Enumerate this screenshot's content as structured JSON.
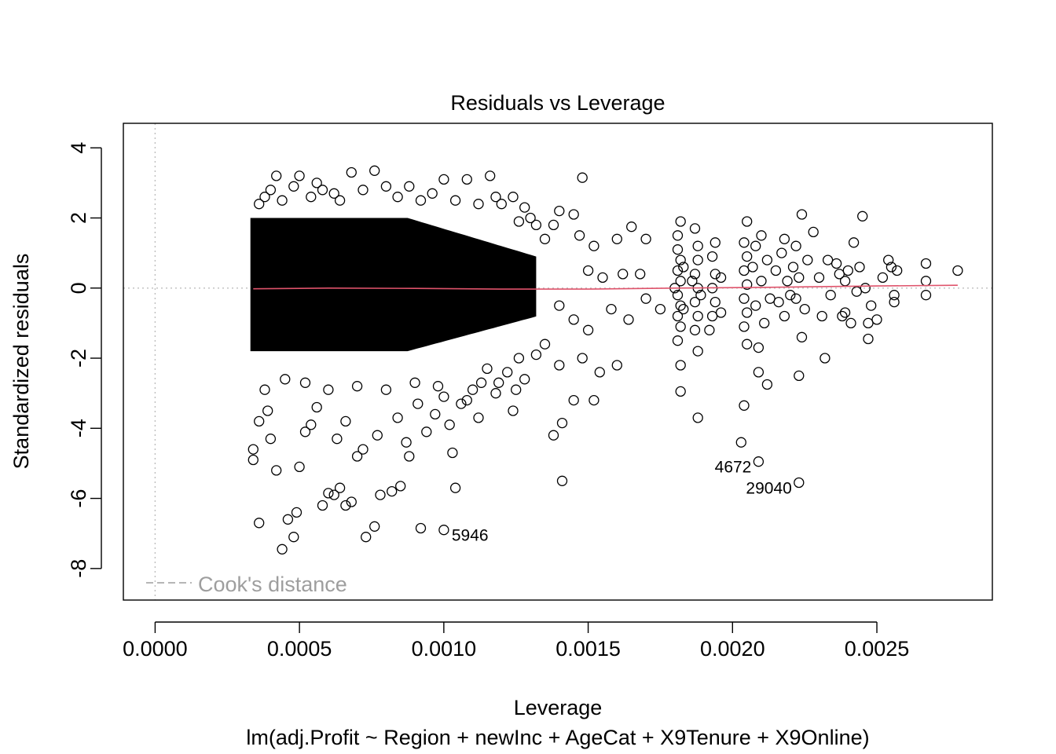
{
  "chart_data": {
    "type": "scatter",
    "title": "Residuals vs Leverage",
    "xlabel": "Leverage",
    "ylabel": "Standardized residuals",
    "subtitle": "lm(adj.Profit ~ Region + newInc + AgeCat + X9Tenure + X9Online)",
    "xlim": [
      -0.00011,
      0.0029
    ],
    "ylim": [
      -8.9,
      4.7
    ],
    "x_ticks": [
      0.0,
      0.0005,
      0.001,
      0.0015,
      0.002,
      0.0025
    ],
    "x_tick_labels": [
      "0.0000",
      "0.0005",
      "0.0010",
      "0.0015",
      "0.0020",
      "0.0025"
    ],
    "y_ticks": [
      -8,
      -6,
      -4,
      -2,
      0,
      2,
      4
    ],
    "y_tick_labels": [
      "-8",
      "-6",
      "-4",
      "-2",
      "0",
      "2",
      "4"
    ],
    "grid": false,
    "reference_lines": {
      "horizontal_zero": true,
      "vertical_zero": true,
      "style": "dotted",
      "color": "#bebebe"
    },
    "legend": {
      "label": "Cook's distance",
      "position": "bottom-left",
      "line_style": "dashed",
      "color": "#9e9e9e"
    },
    "dense_region": {
      "x_min": 0.00033,
      "x_max": 0.00132,
      "y_min": -1.8,
      "y_max": 2.0,
      "description": "overplotted points"
    },
    "points": [
      [
        0.0004,
        2.8
      ],
      [
        0.00042,
        3.2
      ],
      [
        0.0005,
        3.2
      ],
      [
        0.00056,
        3.0
      ],
      [
        0.00062,
        2.7
      ],
      [
        0.00068,
        3.3
      ],
      [
        0.00076,
        3.35
      ],
      [
        0.0008,
        2.9
      ],
      [
        0.00088,
        2.9
      ],
      [
        0.001,
        3.1
      ],
      [
        0.00108,
        3.1
      ],
      [
        0.00116,
        3.2
      ],
      [
        0.0012,
        2.4
      ],
      [
        0.00128,
        2.3
      ],
      [
        0.0013,
        2.0
      ],
      [
        0.0014,
        2.2
      ],
      [
        0.00148,
        3.15
      ],
      [
        0.00147,
        1.5
      ],
      [
        0.00152,
        1.2
      ],
      [
        0.0016,
        1.4
      ],
      [
        0.00165,
        1.75
      ],
      [
        0.0017,
        1.4
      ],
      [
        0.0015,
        0.5
      ],
      [
        0.00155,
        0.3
      ],
      [
        0.00162,
        0.4
      ],
      [
        0.00168,
        0.4
      ],
      [
        0.00145,
        2.1
      ],
      [
        0.00138,
        1.8
      ],
      [
        0.0014,
        -0.5
      ],
      [
        0.00145,
        -0.9
      ],
      [
        0.0015,
        -1.2
      ],
      [
        0.00158,
        -0.6
      ],
      [
        0.00164,
        -0.9
      ],
      [
        0.0017,
        -0.3
      ],
      [
        0.00175,
        -0.6
      ],
      [
        0.00135,
        -1.6
      ],
      [
        0.0014,
        -2.2
      ],
      [
        0.00148,
        -2.0
      ],
      [
        0.00154,
        -2.4
      ],
      [
        0.0016,
        -2.2
      ],
      [
        0.00145,
        -3.2
      ],
      [
        0.00152,
        -3.2
      ],
      [
        0.00138,
        -4.2
      ],
      [
        0.00141,
        -3.85
      ],
      [
        0.00141,
        -5.5
      ],
      [
        0.00034,
        -4.6
      ],
      [
        0.00034,
        -4.9
      ],
      [
        0.00036,
        -6.7
      ],
      [
        0.0004,
        -4.3
      ],
      [
        0.00042,
        -5.2
      ],
      [
        0.00044,
        -7.45
      ],
      [
        0.00046,
        -6.6
      ],
      [
        0.00048,
        -7.1
      ],
      [
        0.00049,
        -6.4
      ],
      [
        0.0005,
        -5.1
      ],
      [
        0.00054,
        -3.9
      ],
      [
        0.00058,
        -6.2
      ],
      [
        0.0006,
        -5.85
      ],
      [
        0.00062,
        -5.9
      ],
      [
        0.00064,
        -5.7
      ],
      [
        0.00066,
        -6.2
      ],
      [
        0.00068,
        -6.1
      ],
      [
        0.0007,
        -4.8
      ],
      [
        0.00073,
        -7.1
      ],
      [
        0.00076,
        -6.8
      ],
      [
        0.00078,
        -5.9
      ],
      [
        0.00082,
        -5.8
      ],
      [
        0.00085,
        -5.65
      ],
      [
        0.00088,
        -4.8
      ],
      [
        0.00092,
        -6.85
      ],
      [
        0.00094,
        -4.1
      ],
      [
        0.001,
        -3.1
      ],
      [
        0.00103,
        -4.7
      ],
      [
        0.00104,
        -5.7
      ],
      [
        0.00108,
        -3.2
      ],
      [
        0.00112,
        -3.7
      ],
      [
        0.00118,
        -3.0
      ],
      [
        0.00124,
        -3.5
      ],
      [
        0.00128,
        -2.6
      ],
      [
        0.00132,
        -1.9
      ],
      [
        0.0011,
        -2.9
      ],
      [
        0.00115,
        -2.3
      ],
      [
        0.00122,
        -2.4
      ],
      [
        0.00126,
        -2.0
      ],
      [
        0.00098,
        -2.8
      ],
      [
        0.0009,
        -2.7
      ],
      [
        0.0008,
        -2.9
      ],
      [
        0.0007,
        -2.8
      ],
      [
        0.0006,
        -2.9
      ],
      [
        0.00052,
        -2.7
      ],
      [
        0.00045,
        -2.6
      ],
      [
        0.00038,
        -2.9
      ],
      [
        0.00036,
        -3.8
      ],
      [
        0.00039,
        -3.5
      ],
      [
        0.00052,
        -4.1
      ],
      [
        0.00056,
        -3.4
      ],
      [
        0.00063,
        -4.3
      ],
      [
        0.00066,
        -3.8
      ],
      [
        0.00072,
        -4.6
      ],
      [
        0.00077,
        -4.2
      ],
      [
        0.00084,
        -3.7
      ],
      [
        0.00087,
        -4.4
      ],
      [
        0.00091,
        -3.3
      ],
      [
        0.00097,
        -3.6
      ],
      [
        0.00102,
        -3.9
      ],
      [
        0.00106,
        -3.3
      ],
      [
        0.00113,
        -2.7
      ],
      [
        0.00119,
        -2.7
      ],
      [
        0.00125,
        -2.9
      ],
      [
        0.00036,
        2.4
      ],
      [
        0.00038,
        2.6
      ],
      [
        0.00044,
        2.5
      ],
      [
        0.00048,
        2.9
      ],
      [
        0.00054,
        2.6
      ],
      [
        0.00058,
        2.8
      ],
      [
        0.00064,
        2.5
      ],
      [
        0.00072,
        2.8
      ],
      [
        0.00084,
        2.6
      ],
      [
        0.00092,
        2.5
      ],
      [
        0.00096,
        2.7
      ],
      [
        0.00104,
        2.5
      ],
      [
        0.00112,
        2.4
      ],
      [
        0.00118,
        2.6
      ],
      [
        0.00124,
        2.6
      ],
      [
        0.00126,
        1.9
      ],
      [
        0.00132,
        1.8
      ],
      [
        0.00135,
        1.4
      ],
      [
        0.00182,
        1.9
      ],
      [
        0.00181,
        1.5
      ],
      [
        0.00181,
        1.1
      ],
      [
        0.00182,
        0.8
      ],
      [
        0.00181,
        0.5
      ],
      [
        0.00182,
        0.2
      ],
      [
        0.00181,
        -0.2
      ],
      [
        0.00182,
        -0.5
      ],
      [
        0.00181,
        -0.8
      ],
      [
        0.00182,
        -1.1
      ],
      [
        0.00181,
        -1.5
      ],
      [
        0.00182,
        -2.2
      ],
      [
        0.00182,
        -2.95
      ],
      [
        0.0018,
        0.0
      ],
      [
        0.00183,
        0.6
      ],
      [
        0.00183,
        -0.6
      ],
      [
        0.00187,
        1.7
      ],
      [
        0.00188,
        1.2
      ],
      [
        0.00188,
        0.8
      ],
      [
        0.00187,
        0.4
      ],
      [
        0.00188,
        0.0
      ],
      [
        0.00187,
        -0.4
      ],
      [
        0.00188,
        -0.8
      ],
      [
        0.00187,
        -1.2
      ],
      [
        0.00188,
        -1.8
      ],
      [
        0.00188,
        -3.7
      ],
      [
        0.00186,
        0.2
      ],
      [
        0.00189,
        -0.2
      ],
      [
        0.00194,
        1.3
      ],
      [
        0.00193,
        0.9
      ],
      [
        0.00194,
        0.4
      ],
      [
        0.00193,
        0.0
      ],
      [
        0.00194,
        -0.4
      ],
      [
        0.00193,
        -0.8
      ],
      [
        0.00192,
        -1.2
      ],
      [
        0.00196,
        -0.7
      ],
      [
        0.00196,
        0.3
      ],
      [
        0.00204,
        1.3
      ],
      [
        0.00205,
        0.9
      ],
      [
        0.00204,
        0.5
      ],
      [
        0.00205,
        0.1
      ],
      [
        0.00204,
        -0.3
      ],
      [
        0.00205,
        -0.7
      ],
      [
        0.00204,
        -1.1
      ],
      [
        0.00205,
        -1.6
      ],
      [
        0.00205,
        1.9
      ],
      [
        0.00204,
        -3.35
      ],
      [
        0.00203,
        -4.4
      ],
      [
        0.00207,
        0.6
      ],
      [
        0.00208,
        1.2
      ],
      [
        0.00208,
        -0.5
      ],
      [
        0.00209,
        -1.7
      ],
      [
        0.00209,
        -2.4
      ],
      [
        0.0021,
        1.5
      ],
      [
        0.0021,
        0.2
      ],
      [
        0.00211,
        -1.0
      ],
      [
        0.00212,
        0.8
      ],
      [
        0.00213,
        -0.3
      ],
      [
        0.00215,
        0.5
      ],
      [
        0.00216,
        -0.4
      ],
      [
        0.00217,
        1.0
      ],
      [
        0.00218,
        -0.8
      ],
      [
        0.00218,
        1.4
      ],
      [
        0.00219,
        0.2
      ],
      [
        0.0022,
        -0.2
      ],
      [
        0.00221,
        0.6
      ],
      [
        0.00222,
        1.2
      ],
      [
        0.00222,
        -0.3
      ],
      [
        0.00223,
        0.3
      ],
      [
        0.00224,
        2.1
      ],
      [
        0.00224,
        -1.4
      ],
      [
        0.00223,
        -2.5
      ],
      [
        0.00212,
        -2.75
      ],
      [
        0.00225,
        -0.6
      ],
      [
        0.00226,
        0.8
      ],
      [
        0.00228,
        1.6
      ],
      [
        0.0023,
        0.3
      ],
      [
        0.00231,
        -0.8
      ],
      [
        0.00232,
        -2.0
      ],
      [
        0.00233,
        0.8
      ],
      [
        0.00234,
        -0.2
      ],
      [
        0.00236,
        0.7
      ],
      [
        0.00238,
        -0.8
      ],
      [
        0.00239,
        0.2
      ],
      [
        0.0024,
        0.5
      ],
      [
        0.00241,
        -1.0
      ],
      [
        0.00242,
        1.3
      ],
      [
        0.00244,
        0.6
      ],
      [
        0.00245,
        2.05
      ],
      [
        0.00246,
        0.0
      ],
      [
        0.00247,
        -1.0
      ],
      [
        0.00248,
        -0.5
      ],
      [
        0.0025,
        -0.9
      ],
      [
        0.00254,
        0.8
      ],
      [
        0.00255,
        0.6
      ],
      [
        0.00256,
        -0.2
      ],
      [
        0.00256,
        -0.4
      ],
      [
        0.00267,
        0.7
      ],
      [
        0.00267,
        0.2
      ],
      [
        0.00267,
        -0.2
      ],
      [
        0.00278,
        0.5
      ],
      [
        0.00252,
        0.3
      ],
      [
        0.00257,
        0.5
      ],
      [
        0.00243,
        -0.1
      ],
      [
        0.00237,
        0.4
      ],
      [
        0.00247,
        -1.45
      ],
      [
        0.00239,
        -0.7
      ]
    ],
    "labeled_points": [
      {
        "label": "5946",
        "x": 0.001,
        "y": -6.9
      },
      {
        "label": "4672",
        "x": 0.00209,
        "y": -4.95
      },
      {
        "label": "29040",
        "x": 0.00223,
        "y": -5.55
      }
    ],
    "smooth_line": {
      "color": "#df536b",
      "points": [
        [
          0.00034,
          -0.02
        ],
        [
          0.0006,
          0.0
        ],
        [
          0.0009,
          -0.01
        ],
        [
          0.0012,
          -0.03
        ],
        [
          0.0015,
          -0.03
        ],
        [
          0.0018,
          0.0
        ],
        [
          0.0021,
          0.02
        ],
        [
          0.0025,
          0.06
        ],
        [
          0.00278,
          0.08
        ]
      ]
    }
  }
}
